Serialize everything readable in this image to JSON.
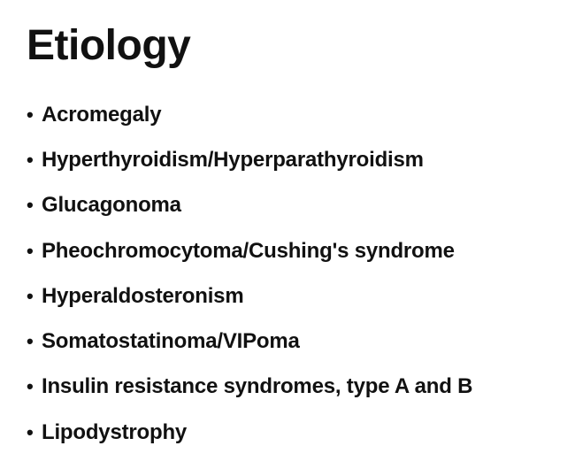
{
  "slide": {
    "title": "Etiology",
    "items": [
      {
        "label": "Acromegaly"
      },
      {
        "label": "Hyperthyroidism/Hyperparathyroidism"
      },
      {
        "label": "Glucagonoma"
      },
      {
        "label": "Pheochromocytoma/Cushing's syndrome"
      },
      {
        "label": "Hyperaldosteronism"
      },
      {
        "label": "Somatostatinoma/VIPoma"
      },
      {
        "label": "Insulin resistance syndromes, type A and B"
      },
      {
        "label": "Lipodystrophy"
      }
    ]
  }
}
